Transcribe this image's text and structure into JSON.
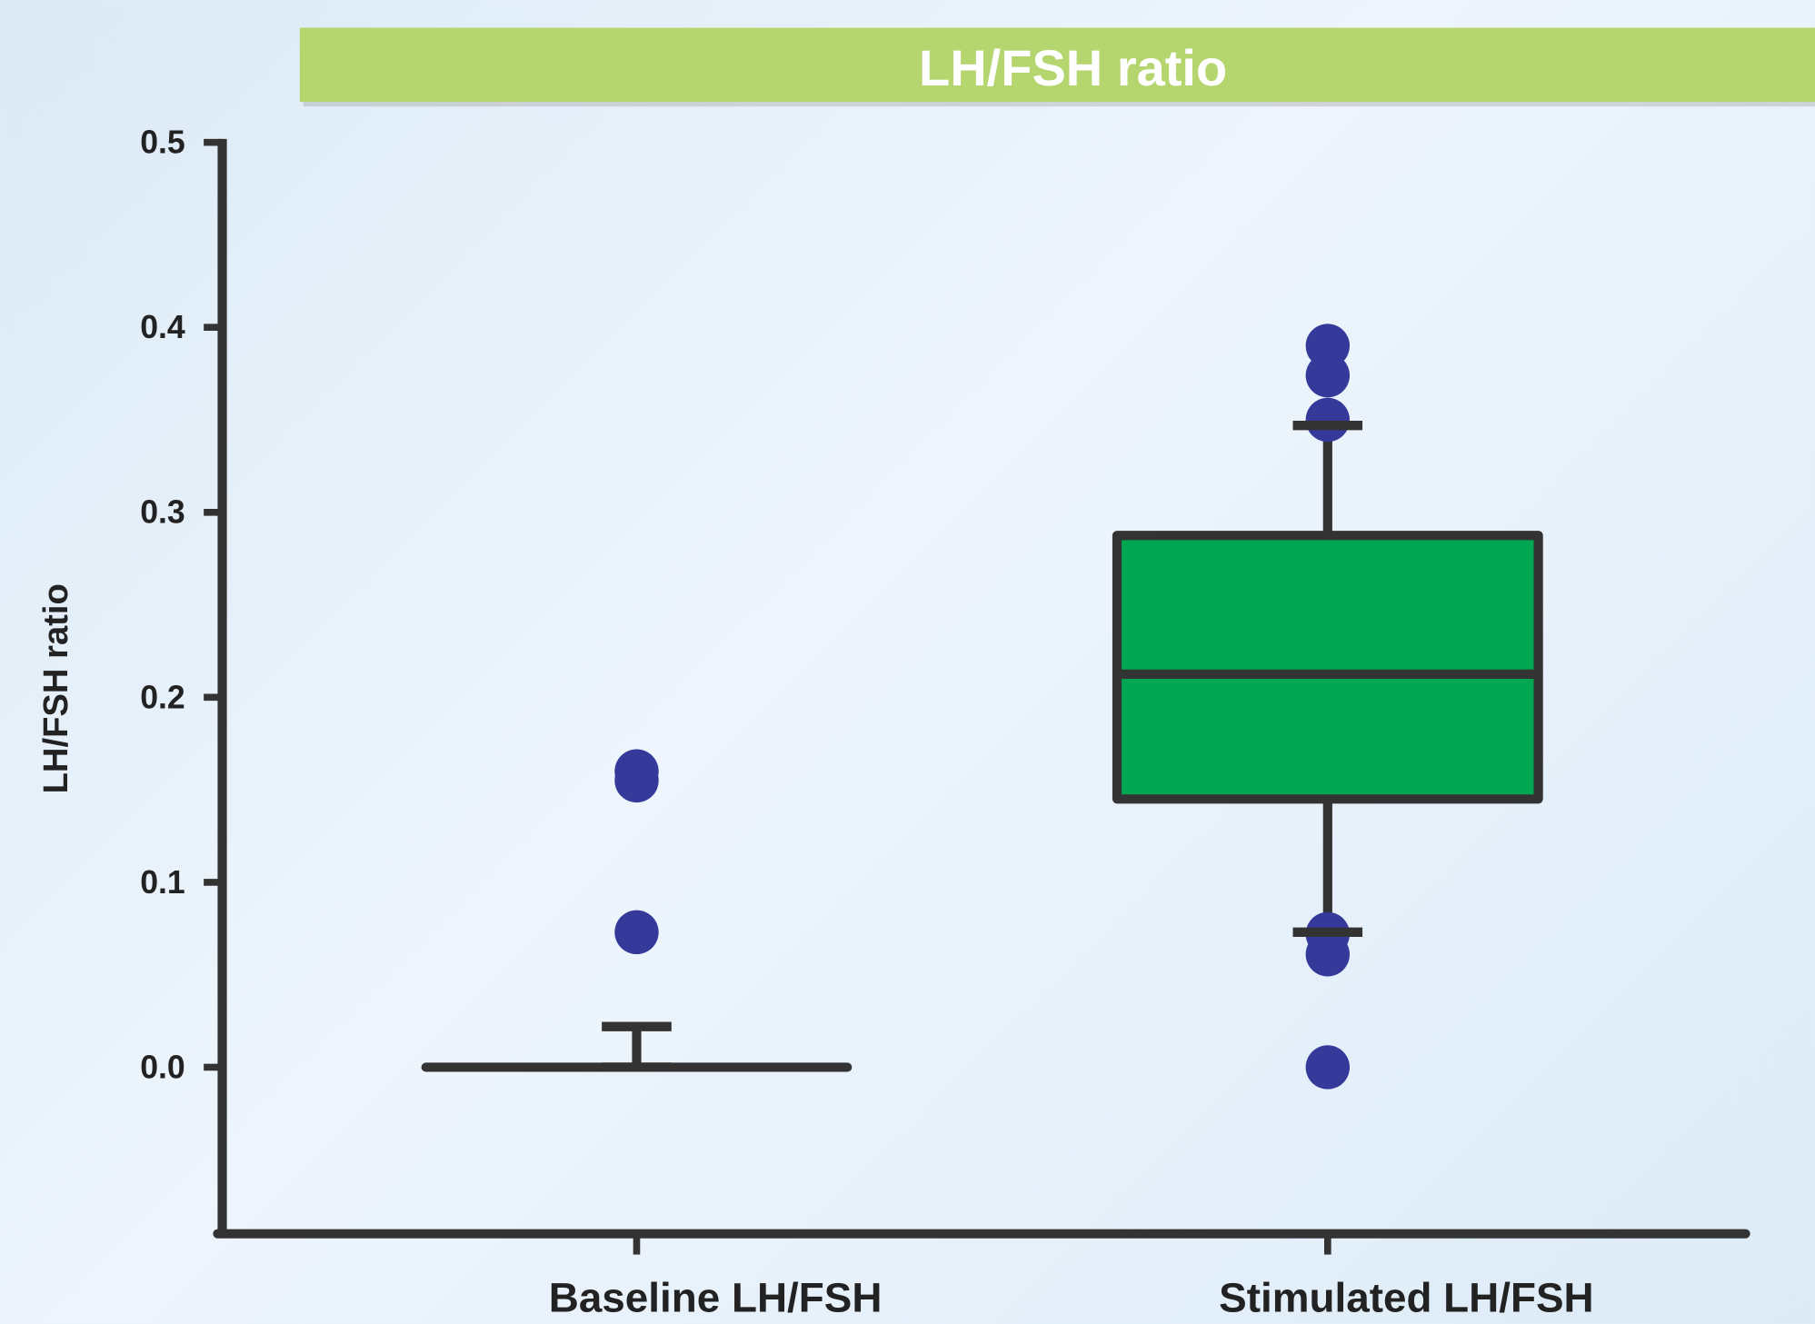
{
  "chart_data": {
    "type": "box",
    "title": "LH/FSH ratio",
    "y_label": "LH/FSH ratio",
    "categories": [
      "Baseline LH/FSH",
      "Stimulated LH/FSH"
    ],
    "ylim": [
      -0.09,
      0.5
    ],
    "yticks": [
      {
        "value": 0,
        "label": "0.0"
      },
      0.1,
      0.2,
      0.3,
      0.4,
      0.5
    ],
    "box_color": "#00a651",
    "outlier_color": "#35399a",
    "boxes": [
      {
        "whisker_low": 0,
        "q1": 0,
        "median": 0,
        "q3": 0,
        "whisker_high": 0.022,
        "outliers": [
          0.16,
          0.155,
          0.073
        ]
      },
      {
        "whisker_low": 0.073,
        "q1": 0.145,
        "median": 0.2125,
        "q3": 0.2875,
        "whisker_high": 0.347,
        "outliers": [
          0.39,
          0.374,
          0.35,
          0.072,
          0.061,
          0
        ]
      }
    ]
  }
}
